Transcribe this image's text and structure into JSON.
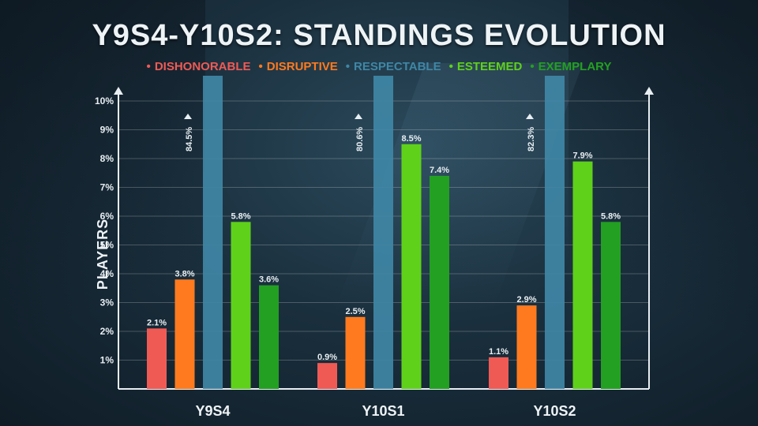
{
  "chart_data": {
    "type": "bar",
    "title": "Y9S4-Y10S2: STANDINGS EVOLUTION",
    "ylabel": "PLAYERS",
    "xlabel": "",
    "ylim": [
      0,
      10
    ],
    "yticks": [
      "1%",
      "2%",
      "3%",
      "4%",
      "5%",
      "6%",
      "7%",
      "8%",
      "9%",
      "10%"
    ],
    "categories": [
      "Y9S4",
      "Y10S1",
      "Y10S2"
    ],
    "legend_position": "top",
    "grid": true,
    "series": [
      {
        "name": "DISHONORABLE",
        "color": "#f05a55",
        "values": [
          2.1,
          0.9,
          1.1
        ],
        "labels": [
          "2.1%",
          "0.9%",
          "1.1%"
        ]
      },
      {
        "name": "DISRUPTIVE",
        "color": "#ff7a1f",
        "values": [
          3.8,
          2.5,
          2.9
        ],
        "labels": [
          "3.8%",
          "2.5%",
          "2.9%"
        ]
      },
      {
        "name": "RESPECTABLE",
        "color": "#3f87a6",
        "values": [
          84.5,
          80.6,
          82.3
        ],
        "labels": [
          "84.5%",
          "80.6%",
          "82.3%"
        ],
        "truncated": true
      },
      {
        "name": "ESTEEMED",
        "color": "#5fd11a",
        "values": [
          5.8,
          8.5,
          7.9
        ],
        "labels": [
          "5.8%",
          "8.5%",
          "7.9%"
        ]
      },
      {
        "name": "EXEMPLARY",
        "color": "#23a021",
        "values": [
          3.6,
          7.4,
          5.8
        ],
        "labels": [
          "3.6%",
          "7.4%",
          "5.8%"
        ]
      }
    ]
  }
}
